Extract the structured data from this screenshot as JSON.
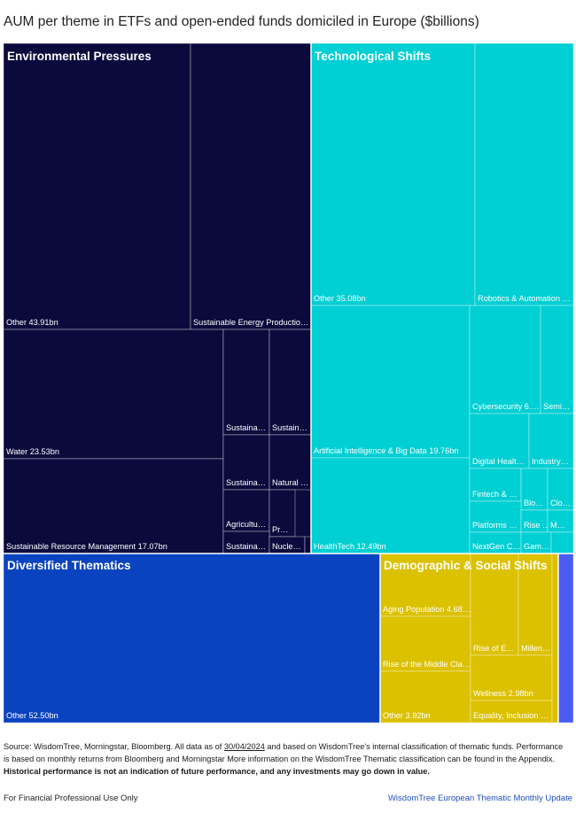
{
  "chart_data": {
    "type": "treemap",
    "title": "AUM per theme in ETFs and open-ended funds domiciled in Europe ($billions)",
    "colors": {
      "Environmental Pressures": "#0b0a3c",
      "Technological Shifts": "#00cfd3",
      "Diversified Thematics": "#0a43c0",
      "Demographic & Social Shifts": "#dcc100",
      "other": "#4b5cf2"
    },
    "groups": [
      {
        "name": "Environmental Pressures",
        "items": [
          {
            "label": "Other 43.91bn",
            "value": 43.91
          },
          {
            "label": "Sustainable Energy Productio…",
            "value": null
          },
          {
            "label": "Water 23.53bn",
            "value": 23.53
          },
          {
            "label": "Sustainable Resource Management 17.07bn",
            "value": 17.07
          },
          {
            "label": "Sustaina…",
            "value": null
          },
          {
            "label": "Sustain…",
            "value": null
          },
          {
            "label": "Sustaina…",
            "value": null
          },
          {
            "label": "Natural …",
            "value": null
          },
          {
            "label": "Agricultu…",
            "value": null
          },
          {
            "label": "Pr…",
            "value": null
          },
          {
            "label": "Sustaina…",
            "value": null
          },
          {
            "label": "Nucle…",
            "value": null
          },
          {
            "label": "",
            "value": null
          }
        ]
      },
      {
        "name": "Technological Shifts",
        "items": [
          {
            "label": "Other 35.08bn",
            "value": 35.08
          },
          {
            "label": "Robotics & Automation …",
            "value": null
          },
          {
            "label": "Artificial Intelligence & Big Data 19.76bn",
            "value": 19.76
          },
          {
            "label": "HealthTech 12.49bn",
            "value": 12.49
          },
          {
            "label": "Cybersecurity 6.…",
            "value": null
          },
          {
            "label": "Semi…",
            "value": null
          },
          {
            "label": "Digital Healt…",
            "value": null
          },
          {
            "label": "Industry…",
            "value": null
          },
          {
            "label": "Fintech & …",
            "value": null
          },
          {
            "label": "Blo…",
            "value": null
          },
          {
            "label": "Clo…",
            "value": null
          },
          {
            "label": "Platforms …",
            "value": null
          },
          {
            "label": "Rise …",
            "value": null
          },
          {
            "label": "M…",
            "value": null
          },
          {
            "label": "NextGen C…",
            "value": null
          },
          {
            "label": "Gam…",
            "value": null
          },
          {
            "label": "",
            "value": null
          }
        ]
      },
      {
        "name": "Diversified Thematics",
        "items": [
          {
            "label": "Other 52.50bn",
            "value": 52.5
          }
        ]
      },
      {
        "name": "Demographic & Social Shifts",
        "items": [
          {
            "label": "Aging Population 4.68…",
            "value": 4.68
          },
          {
            "label": "Rise of the Middle Cla…",
            "value": null
          },
          {
            "label": "Other 3.92bn",
            "value": 3.92
          },
          {
            "label": "Rise of E…",
            "value": null
          },
          {
            "label": "Millen…",
            "value": null
          },
          {
            "label": "Wellness 2.98bn",
            "value": 2.98
          },
          {
            "label": "Equality, Inclusion …",
            "value": null
          },
          {
            "label": "",
            "value": null
          }
        ]
      },
      {
        "name": "",
        "items": [
          {
            "label": "",
            "value": null
          }
        ]
      }
    ]
  },
  "source": {
    "prefix": "Source: WisdomTree, Morningstar, Bloomberg. All data as of ",
    "date": "30/04/2024",
    "middle": " and based on WisdomTree's internal classification of thematic funds. Performance is based on monthly returns from Bloomberg and Morningstar More information on the WisdomTree Thematic classification can be found in the Appendix. ",
    "bold": "Historical performance is not an indication of future performance, and any investments may go down in value."
  },
  "footer": {
    "left": "For Financial Professional Use Only",
    "right": "WisdomTree European Thematic Monthly Update"
  }
}
